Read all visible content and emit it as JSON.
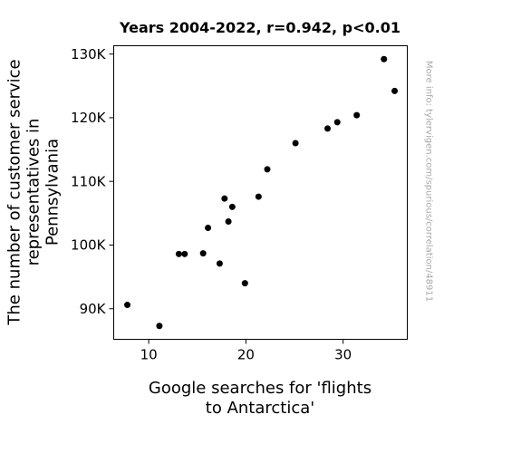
{
  "chart_data": {
    "type": "scatter",
    "title": "Years 2004-2022, r=0.942, p<0.01",
    "xlabel_lines": [
      "Google searches for 'flights",
      "to Antarctica'"
    ],
    "ylabel_lines": [
      "The number of customer service",
      "representatives in",
      "Pennsylvania"
    ],
    "xlim": [
      6.4,
      36.6
    ],
    "ylim": [
      85200,
      131300
    ],
    "x_ticks": [
      10,
      20,
      30
    ],
    "x_tick_labels": [
      "10",
      "20",
      "30"
    ],
    "y_ticks": [
      90000,
      100000,
      110000,
      120000,
      130000
    ],
    "y_tick_labels": [
      "90K",
      "100K",
      "110K",
      "120K",
      "130K"
    ],
    "grid": false,
    "marker_color": "#000000",
    "points": [
      {
        "x": 7.8,
        "y": 90600
      },
      {
        "x": 11.1,
        "y": 87300
      },
      {
        "x": 13.1,
        "y": 98600
      },
      {
        "x": 13.7,
        "y": 98600
      },
      {
        "x": 15.6,
        "y": 98700
      },
      {
        "x": 16.1,
        "y": 102700
      },
      {
        "x": 17.3,
        "y": 97100
      },
      {
        "x": 17.8,
        "y": 107300
      },
      {
        "x": 18.2,
        "y": 103700
      },
      {
        "x": 18.6,
        "y": 106000
      },
      {
        "x": 19.9,
        "y": 94000
      },
      {
        "x": 21.3,
        "y": 107600
      },
      {
        "x": 22.2,
        "y": 111900
      },
      {
        "x": 25.1,
        "y": 116000
      },
      {
        "x": 28.4,
        "y": 118300
      },
      {
        "x": 29.4,
        "y": 119300
      },
      {
        "x": 31.4,
        "y": 120400
      },
      {
        "x": 34.2,
        "y": 129200
      },
      {
        "x": 35.3,
        "y": 124200
      }
    ]
  },
  "watermark": "More info: tylervigen.com/spurious/correlation/48911",
  "watermark_color": "#aaaaaa"
}
